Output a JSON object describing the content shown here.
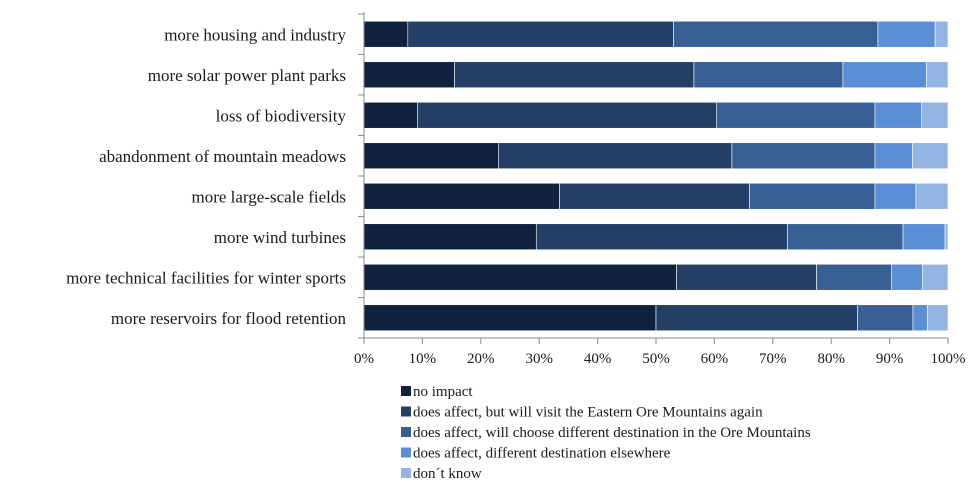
{
  "chart_data": {
    "type": "bar",
    "orientation": "horizontal",
    "stacked": "percent",
    "categories": [
      "more housing and industry",
      "more solar power plant parks",
      "loss of biodiversity",
      "abandonment of mountain meadows",
      "more large-scale fields",
      "more wind turbines",
      "more technical facilities for winter sports",
      "more reservoirs for flood retention"
    ],
    "series": [
      {
        "name": "no impact",
        "color": "#10223d",
        "values": [
          7.5,
          15.5,
          9.2,
          23.0,
          33.5,
          29.5,
          53.5,
          50.0
        ]
      },
      {
        "name": "does affect, but will visit the Eastern Ore Mountains again",
        "color": "#243f66",
        "values": [
          45.5,
          41.0,
          51.2,
          40.0,
          32.5,
          43.0,
          24.0,
          34.5
        ]
      },
      {
        "name": "does affect, will choose different destination in the Ore Mountains",
        "color": "#375f94",
        "values": [
          35.0,
          25.5,
          27.1,
          24.5,
          21.5,
          19.8,
          12.8,
          9.5
        ]
      },
      {
        "name": "does affect, different destination elsewhere",
        "color": "#5a8fd6",
        "values": [
          9.8,
          14.3,
          8.0,
          6.4,
          7.0,
          7.2,
          5.3,
          2.5
        ]
      },
      {
        "name": "don´t know",
        "color": "#92b5e3",
        "values": [
          2.2,
          3.7,
          4.5,
          6.1,
          5.5,
          0.5,
          4.4,
          3.5
        ]
      }
    ],
    "x_ticks": [
      "0%",
      "10%",
      "20%",
      "30%",
      "40%",
      "50%",
      "60%",
      "70%",
      "80%",
      "90%",
      "100%"
    ],
    "xlim": [
      0,
      100
    ],
    "grid": false,
    "legend_position": "bottom"
  }
}
